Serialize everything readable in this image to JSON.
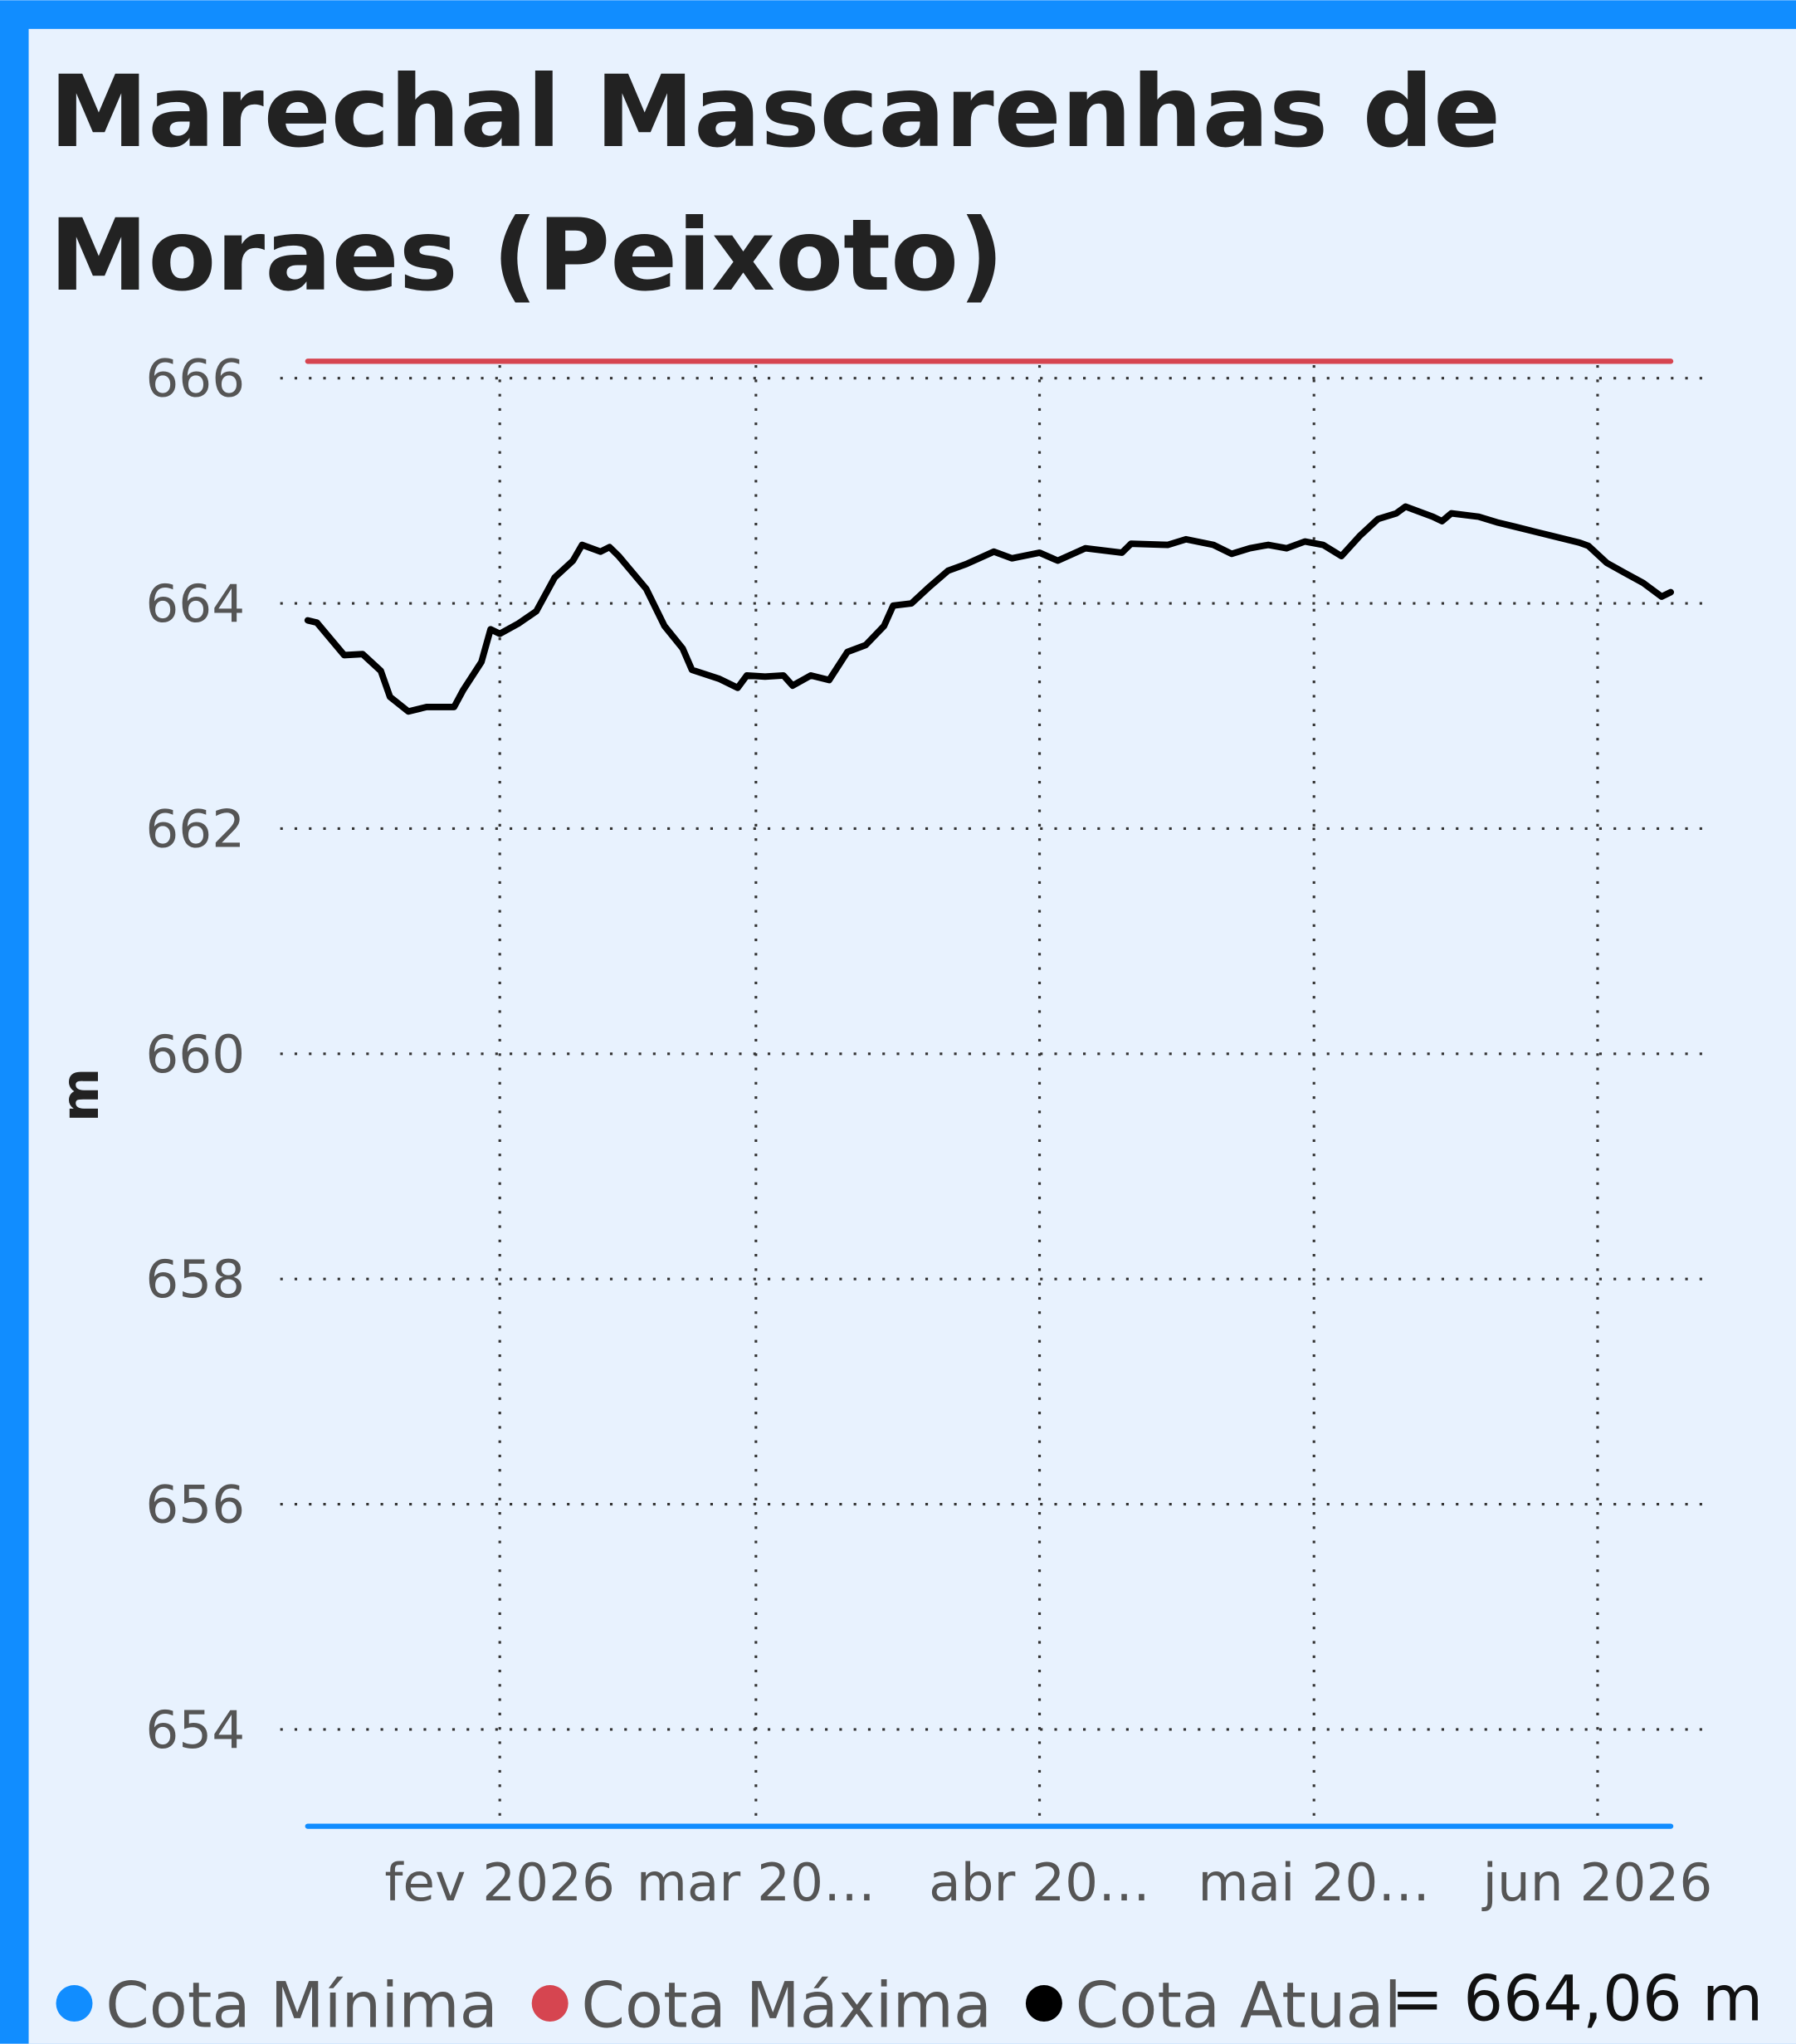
{
  "chart_data": {
    "type": "line",
    "title": "Marechal Mascarenhas de Moraes (Peixoto)",
    "y_label": "m",
    "annotation": "= 664,06 m",
    "xlim": [
      "2026-01-08",
      "2026-06-13"
    ],
    "xticks": [
      {
        "value": "2026-02-01",
        "label": "fev 2026"
      },
      {
        "value": "2026-03-01",
        "label": "mar 20…"
      },
      {
        "value": "2026-04-01",
        "label": "abr 20…"
      },
      {
        "value": "2026-05-01",
        "label": "mai 20…"
      },
      {
        "value": "2026-06-01",
        "label": "jun 2026"
      }
    ],
    "ylim": [
      653.1,
      666.3
    ],
    "yticks": [
      654,
      656,
      658,
      660,
      662,
      664,
      666
    ],
    "grid": true,
    "series": [
      {
        "name": "Cota Mínima",
        "color": "#118dff",
        "x": [
          "2026-01-11",
          "2026-06-09"
        ],
        "values": [
          653.14,
          653.14
        ]
      },
      {
        "name": "Cota Máxima",
        "color": "#d64550",
        "x": [
          "2026-01-11",
          "2026-06-09"
        ],
        "values": [
          666.15,
          666.15
        ]
      },
      {
        "name": "Cota Atual",
        "color": "#000000",
        "x": [
          "2026-01-11",
          "2026-01-12",
          "2026-01-15",
          "2026-01-17",
          "2026-01-19",
          "2026-01-20",
          "2026-01-22",
          "2026-01-24",
          "2026-01-27",
          "2026-01-28",
          "2026-01-30",
          "2026-01-31",
          "2026-02-01",
          "2026-02-03",
          "2026-02-05",
          "2026-02-07",
          "2026-02-09",
          "2026-02-10",
          "2026-02-12",
          "2026-02-13",
          "2026-02-14",
          "2026-02-17",
          "2026-02-19",
          "2026-02-21",
          "2026-02-22",
          "2026-02-25",
          "2026-02-27",
          "2026-02-28",
          "2026-03-02",
          "2026-03-04",
          "2026-03-05",
          "2026-03-07",
          "2026-03-09",
          "2026-03-11",
          "2026-03-13",
          "2026-03-15",
          "2026-03-16",
          "2026-03-18",
          "2026-03-20",
          "2026-03-22",
          "2026-03-24",
          "2026-03-27",
          "2026-03-29",
          "2026-04-01",
          "2026-04-03",
          "2026-04-06",
          "2026-04-10",
          "2026-04-11",
          "2026-04-15",
          "2026-04-17",
          "2026-04-20",
          "2026-04-22",
          "2026-04-24",
          "2026-04-26",
          "2026-04-28",
          "2026-04-30",
          "2026-05-02",
          "2026-05-04",
          "2026-05-06",
          "2026-05-08",
          "2026-05-10",
          "2026-05-11",
          "2026-05-14",
          "2026-05-15",
          "2026-05-16",
          "2026-05-19",
          "2026-05-21",
          "2026-05-23",
          "2026-05-25",
          "2026-05-27",
          "2026-05-30",
          "2026-05-31",
          "2026-06-02",
          "2026-06-04",
          "2026-06-06",
          "2026-06-08",
          "2026-06-09"
        ],
        "values": [
          663.85,
          663.83,
          663.54,
          663.55,
          663.4,
          663.17,
          663.04,
          663.08,
          663.08,
          663.23,
          663.48,
          663.77,
          663.73,
          663.82,
          663.93,
          664.23,
          664.38,
          664.52,
          664.46,
          664.5,
          664.42,
          664.13,
          663.8,
          663.6,
          663.41,
          663.33,
          663.25,
          663.36,
          663.35,
          663.36,
          663.27,
          663.36,
          663.32,
          663.57,
          663.63,
          663.8,
          663.98,
          664.0,
          664.15,
          664.29,
          664.35,
          664.46,
          664.4,
          664.45,
          664.38,
          664.49,
          664.45,
          664.53,
          664.52,
          664.57,
          664.52,
          664.44,
          664.49,
          664.52,
          664.49,
          664.55,
          664.52,
          664.42,
          664.6,
          664.75,
          664.8,
          664.86,
          664.77,
          664.73,
          664.8,
          664.77,
          664.72,
          664.68,
          664.64,
          664.6,
          664.54,
          664.51,
          664.36,
          664.27,
          664.18,
          664.06,
          664.1
        ]
      }
    ]
  }
}
